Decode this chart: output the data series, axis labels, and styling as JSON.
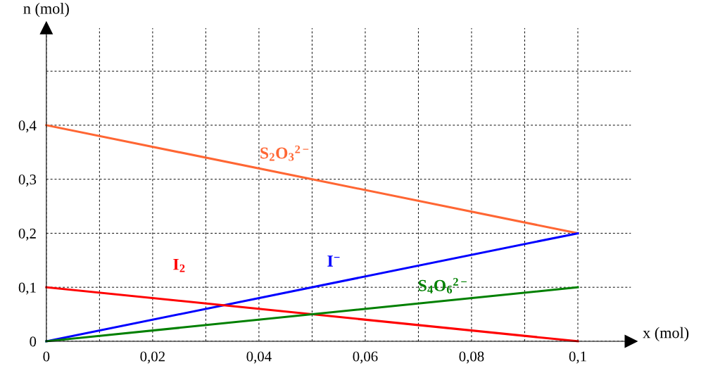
{
  "chart_data": {
    "type": "line",
    "xlabel": "x (mol)",
    "ylabel": "n (mol)",
    "x": [
      0,
      0.1
    ],
    "series": [
      {
        "name": "S$_{2}$O$_{3}$$^{2−}$",
        "color": "#ff6633",
        "values": [
          0.4,
          0.2
        ]
      },
      {
        "name": "I$^{−}$",
        "color": "#0000ff",
        "values": [
          0,
          0.2
        ]
      },
      {
        "name": "I$_{2}$",
        "color": "#ff0000",
        "values": [
          0.1,
          0
        ]
      },
      {
        "name": "S$_{4}$O$_{6}$$^{2−}$",
        "color": "#008000",
        "values": [
          0,
          0.1
        ]
      }
    ],
    "xlim": [
      0,
      0.11
    ],
    "ylim": [
      0,
      0.58
    ],
    "xticks": [
      {
        "value": 0,
        "label": "0"
      },
      {
        "value": 0.01,
        "label": null
      },
      {
        "value": 0.02,
        "label": "0,02"
      },
      {
        "value": 0.03,
        "label": null
      },
      {
        "value": 0.04,
        "label": "0,04"
      },
      {
        "value": 0.05,
        "label": null
      },
      {
        "value": 0.06,
        "label": "0,06"
      },
      {
        "value": 0.07,
        "label": null
      },
      {
        "value": 0.08,
        "label": "0,08"
      },
      {
        "value": 0.09,
        "label": null
      },
      {
        "value": 0.1,
        "label": "0,1"
      }
    ],
    "yticks": [
      {
        "value": 0,
        "label": "0"
      },
      {
        "value": 0.1,
        "label": "0,1"
      },
      {
        "value": 0.2,
        "label": "0,2"
      },
      {
        "value": 0.3,
        "label": "0,3"
      },
      {
        "value": 0.4,
        "label": "0,4"
      },
      {
        "value": 0.5,
        "label": null
      }
    ],
    "grid": true,
    "legend": false,
    "marker": "none",
    "line_style": "solid"
  }
}
